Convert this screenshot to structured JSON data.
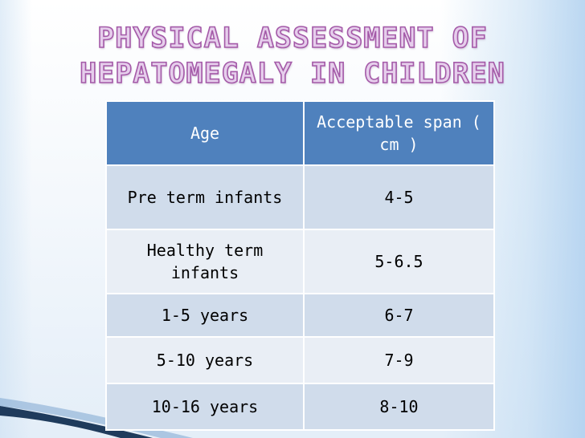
{
  "slide": {
    "title_line1": "PHYSICAL ASSESSMENT OF",
    "title_line2": "HEPATOMEGALY IN CHILDREN"
  },
  "table": {
    "headers": [
      "Age",
      "Acceptable span ( cm )"
    ],
    "rows": [
      {
        "age": "Pre term infants",
        "span": "4-5"
      },
      {
        "age": "Healthy term infants",
        "span": "5-6.5"
      },
      {
        "age": "1-5 years",
        "span": "6-7"
      },
      {
        "age": "5-10 years",
        "span": "7-9"
      },
      {
        "age": "10-16 years",
        "span": "8-10"
      }
    ]
  },
  "colors": {
    "header_bg": "#4f81bd",
    "row_dark": "#d0dceb",
    "row_light": "#e9eef5",
    "title_fill": "#e6ceec",
    "title_stroke": "#a45aa8"
  }
}
